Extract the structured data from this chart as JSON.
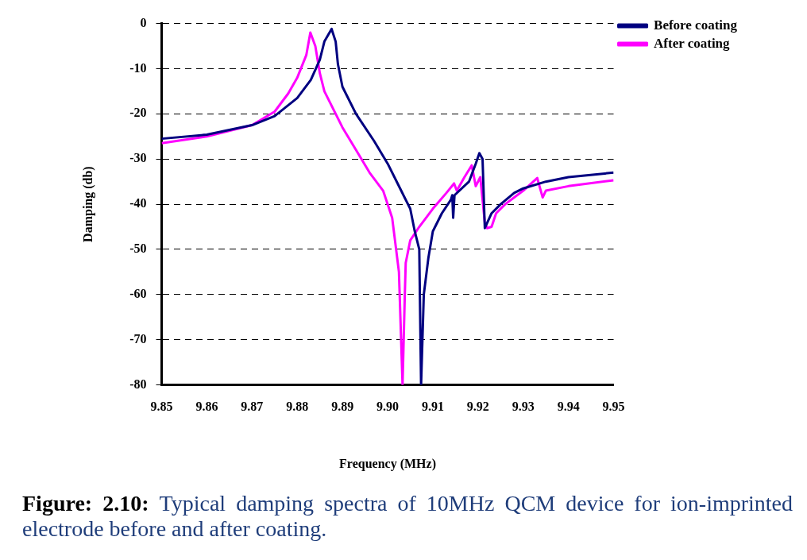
{
  "chart_data": {
    "type": "line",
    "xlabel": "Frequency (MHz)",
    "ylabel": "Damping (db)",
    "annotations": [
      "Figure: 2.10:",
      "Typical damping spectra of 10MHz QCM device for ion-imprinted electrode before and after coating."
    ],
    "xlim": [
      9.85,
      9.95
    ],
    "xticks": [
      9.85,
      9.86,
      9.87,
      9.88,
      9.89,
      {
        "value": 9.9,
        "label": "9.90"
      },
      9.91,
      9.92,
      9.93,
      9.94,
      9.95
    ],
    "ylim": [
      -80,
      0
    ],
    "yticks": [
      -80,
      -70,
      -60,
      -50,
      -40,
      -30,
      -20,
      -10,
      0
    ],
    "grid": "y",
    "legend": "top right",
    "marker": "none",
    "line_style": "solid",
    "series": [
      {
        "name": "Before coating",
        "color": "#000080",
        "x": [
          9.85,
          9.86,
          9.87,
          9.875,
          9.88,
          9.883,
          9.885,
          9.886,
          9.8876,
          9.8885,
          9.889,
          9.89,
          9.893,
          9.897,
          9.9,
          9.903,
          9.905,
          9.906,
          9.907,
          9.9074,
          9.908,
          9.909,
          9.91,
          9.912,
          9.914,
          9.9143,
          9.9145,
          9.9148,
          9.918,
          9.9195,
          9.9203,
          9.921,
          9.9215,
          9.923,
          9.925,
          9.928,
          9.93,
          9.935,
          9.94,
          9.95
        ],
        "values": [
          -25.5,
          -24.6,
          -22.5,
          -20.5,
          -16.5,
          -12.5,
          -8,
          -4,
          -1.2,
          -4,
          -9,
          -14,
          -20,
          -26,
          -31,
          -37,
          -41,
          -46,
          -50,
          -80,
          -60,
          -52,
          -46,
          -42,
          -39,
          -38,
          -43,
          -38,
          -35,
          -31,
          -28.7,
          -30,
          -45.3,
          -42,
          -40,
          -37.5,
          -36.5,
          -35,
          -34,
          -33
        ]
      },
      {
        "name": "After coating",
        "color": "#ff00ff",
        "x": [
          9.85,
          9.86,
          9.87,
          9.875,
          9.878,
          9.88,
          9.882,
          9.8829,
          9.884,
          9.885,
          9.886,
          9.888,
          9.89,
          9.893,
          9.896,
          9.899,
          9.901,
          9.9025,
          9.9033,
          9.9038,
          9.904,
          9.905,
          9.907,
          9.91,
          9.913,
          9.9147,
          9.9153,
          9.917,
          9.9186,
          9.9195,
          9.9205,
          9.9215,
          9.922,
          9.923,
          9.924,
          9.926,
          9.93,
          9.9331,
          9.9343,
          9.935,
          9.94,
          9.95
        ],
        "values": [
          -26.5,
          -25,
          -22.5,
          -19.5,
          -15.5,
          -12,
          -7,
          -2,
          -5,
          -11,
          -15,
          -19,
          -23,
          -28,
          -33,
          -37,
          -43,
          -55,
          -80,
          -60,
          -53,
          -48,
          -45,
          -41,
          -37.5,
          -35.4,
          -37,
          -34,
          -31.4,
          -36,
          -34,
          -44,
          -45.3,
          -45,
          -42,
          -40,
          -37,
          -34.2,
          -38.5,
          -37,
          -36,
          -34.7
        ]
      }
    ]
  }
}
